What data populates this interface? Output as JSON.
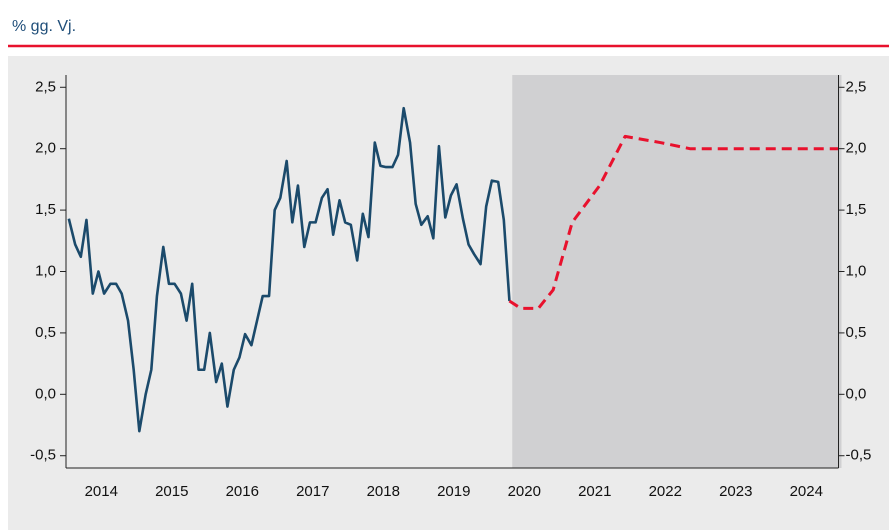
{
  "chart_data": {
    "type": "line",
    "subtitle": "% gg. Vj.",
    "xlim": [
      2014,
      2025
    ],
    "ylim": [
      -0.6,
      2.6
    ],
    "shaded_xlim": [
      2020.33,
      2025
    ],
    "xticks": [
      {
        "value": 2014.5,
        "label": "2014"
      },
      {
        "value": 2015.5,
        "label": "2015"
      },
      {
        "value": 2016.5,
        "label": "2016"
      },
      {
        "value": 2017.5,
        "label": "2017"
      },
      {
        "value": 2018.5,
        "label": "2018"
      },
      {
        "value": 2019.5,
        "label": "2019"
      },
      {
        "value": 2020.5,
        "label": "2020"
      },
      {
        "value": 2021.5,
        "label": "2021"
      },
      {
        "value": 2022.5,
        "label": "2022"
      },
      {
        "value": 2023.5,
        "label": "2023"
      },
      {
        "value": 2024.5,
        "label": "2024"
      }
    ],
    "yticks": [
      {
        "value": -0.5,
        "label": "-0,5"
      },
      {
        "value": 0,
        "label": "0,0"
      },
      {
        "value": 0.5,
        "label": "0,5"
      },
      {
        "value": 1,
        "label": "1,0"
      },
      {
        "value": 1.5,
        "label": "1,5"
      },
      {
        "value": 2,
        "label": "2,0"
      },
      {
        "value": 2.5,
        "label": "2,5"
      }
    ],
    "series": [
      {
        "color": "#1b4a6b",
        "dashed": false,
        "x": [
          2014.04,
          2014.13,
          2014.21,
          2014.29,
          2014.38,
          2014.46,
          2014.54,
          2014.63,
          2014.71,
          2014.79,
          2014.88,
          2014.96,
          2015.04,
          2015.13,
          2015.21,
          2015.29,
          2015.38,
          2015.46,
          2015.54,
          2015.63,
          2015.71,
          2015.79,
          2015.88,
          2015.96,
          2016.04,
          2016.13,
          2016.21,
          2016.29,
          2016.38,
          2016.46,
          2016.54,
          2016.63,
          2016.71,
          2016.79,
          2016.88,
          2016.96,
          2017.04,
          2017.13,
          2017.21,
          2017.29,
          2017.38,
          2017.46,
          2017.54,
          2017.63,
          2017.71,
          2017.79,
          2017.88,
          2017.96,
          2018.04,
          2018.13,
          2018.21,
          2018.29,
          2018.38,
          2018.46,
          2018.54,
          2018.63,
          2018.71,
          2018.79,
          2018.88,
          2018.96,
          2019.04,
          2019.13,
          2019.21,
          2019.29,
          2019.38,
          2019.46,
          2019.54,
          2019.63,
          2019.71,
          2019.79,
          2019.88,
          2019.96,
          2020.04,
          2020.13,
          2020.21,
          2020.29
        ],
        "values": [
          1.43,
          1.22,
          1.12,
          1.42,
          0.82,
          1.0,
          0.82,
          0.9,
          0.9,
          0.82,
          0.6,
          0.2,
          -0.3,
          0.0,
          0.2,
          0.8,
          1.2,
          0.9,
          0.9,
          0.82,
          0.6,
          0.9,
          0.2,
          0.2,
          0.5,
          0.1,
          0.25,
          -0.1,
          0.2,
          0.3,
          0.49,
          0.4,
          0.6,
          0.8,
          0.8,
          1.5,
          1.6,
          1.9,
          1.4,
          1.7,
          1.2,
          1.4,
          1.4,
          1.6,
          1.67,
          1.3,
          1.58,
          1.4,
          1.38,
          1.09,
          1.47,
          1.28,
          2.05,
          1.86,
          1.85,
          1.85,
          1.95,
          2.33,
          2.05,
          1.55,
          1.38,
          1.45,
          1.27,
          2.02,
          1.44,
          1.62,
          1.71,
          1.43,
          1.22,
          1.14,
          1.06,
          1.53,
          1.74,
          1.73,
          1.42,
          0.76
        ]
      },
      {
        "color": "#e8112d",
        "dashed": true,
        "x": [
          2020.29,
          2020.45,
          2020.7,
          2020.91,
          2021.18,
          2021.57,
          2021.93,
          2022.43,
          2022.85,
          2024.95
        ],
        "values": [
          0.76,
          0.7,
          0.7,
          0.85,
          1.4,
          1.7,
          2.1,
          2.05,
          2.0,
          2.0
        ]
      }
    ]
  }
}
